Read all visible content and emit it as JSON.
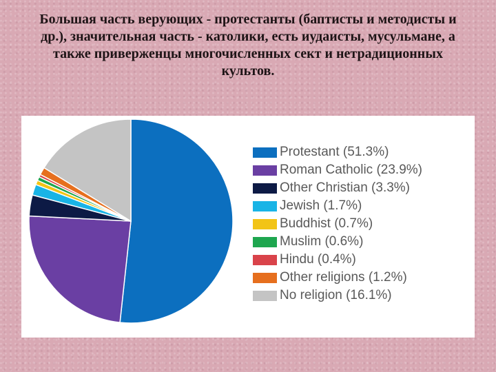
{
  "slide": {
    "text": "Большая часть верующих - протестанты (баптисты и методисты и др.), значительная часть - католики, есть иудаисты, мусульмане, а также приверженцы многочисленных сект и нетрадиционных культов."
  },
  "chart_data": {
    "type": "pie",
    "start": "12 o'clock",
    "direction": "clockwise",
    "legend_position": "right",
    "slices": [
      {
        "label": "Protestant",
        "value": 51.3,
        "legend": "Protestant (51.3%)",
        "color": "#0c6fbf"
      },
      {
        "label": "Roman Catholic",
        "value": 23.9,
        "legend": "Roman Catholic (23.9%)",
        "color": "#6a3fa3"
      },
      {
        "label": "Other Christian",
        "value": 3.3,
        "legend": "Other Christian (3.3%)",
        "color": "#0d1a45"
      },
      {
        "label": "Jewish",
        "value": 1.7,
        "legend": "Jewish (1.7%)",
        "color": "#19b4e6"
      },
      {
        "label": "Buddhist",
        "value": 0.7,
        "legend": "Buddhist (0.7%)",
        "color": "#f2c416"
      },
      {
        "label": "Muslim",
        "value": 0.6,
        "legend": "Muslim (0.6%)",
        "color": "#1ea64f"
      },
      {
        "label": "Hindu",
        "value": 0.4,
        "legend": "Hindu (0.4%)",
        "color": "#d9434a"
      },
      {
        "label": "Other religions",
        "value": 1.2,
        "legend": "Other religions (1.2%)",
        "color": "#e66f1e"
      },
      {
        "label": "No religion",
        "value": 16.1,
        "legend": "No religion (16.1%)",
        "color": "#c4c4c4"
      }
    ]
  }
}
